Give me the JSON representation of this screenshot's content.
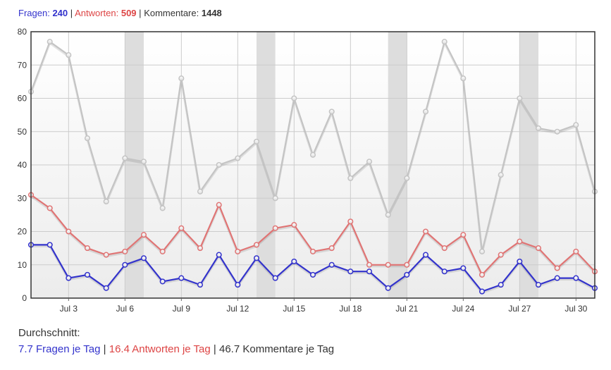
{
  "summary": {
    "questions_label": "Fragen:",
    "questions_value": "240",
    "answers_label": "Antworten:",
    "answers_value": "509",
    "comments_label": "Kommentare:",
    "comments_value": "1448",
    "separator": "|"
  },
  "footer": {
    "heading": "Durchschnitt:",
    "questions_avg": "7.7 Fragen je Tag",
    "answers_avg": "16.4 Antworten je Tag",
    "comments_avg": "46.7 Kommentare je Tag",
    "separator": "|"
  },
  "colors": {
    "questions": "#3333cc",
    "answers": "#e07474",
    "comments": "#c4c4c4",
    "weekend_band": "#dddddd"
  },
  "chart_data": {
    "type": "line",
    "x": [
      1,
      2,
      3,
      4,
      5,
      6,
      7,
      8,
      9,
      10,
      11,
      12,
      13,
      14,
      15,
      16,
      17,
      18,
      19,
      20,
      21,
      22,
      23,
      24,
      25,
      26,
      27,
      28,
      29,
      30,
      31
    ],
    "x_unit": "day of July",
    "xlim": [
      1,
      31
    ],
    "ylim": [
      0,
      80
    ],
    "yticks": [
      0,
      10,
      20,
      30,
      40,
      50,
      60,
      70,
      80
    ],
    "xticks": [
      {
        "x": 3,
        "label": "Jul 3"
      },
      {
        "x": 6,
        "label": "Jul 6"
      },
      {
        "x": 9,
        "label": "Jul 9"
      },
      {
        "x": 12,
        "label": "Jul 12"
      },
      {
        "x": 15,
        "label": "Jul 15"
      },
      {
        "x": 18,
        "label": "Jul 18"
      },
      {
        "x": 21,
        "label": "Jul 21"
      },
      {
        "x": 24,
        "label": "Jul 24"
      },
      {
        "x": 27,
        "label": "Jul 27"
      },
      {
        "x": 30,
        "label": "Jul 30"
      }
    ],
    "weekend_bands": [
      [
        6,
        7
      ],
      [
        13,
        14
      ],
      [
        20,
        21
      ],
      [
        27,
        28
      ]
    ],
    "grid": true,
    "series": [
      {
        "key": "comments",
        "values": [
          62,
          77,
          73,
          48,
          29,
          42,
          41,
          27,
          66,
          32,
          40,
          42,
          47,
          30,
          60,
          43,
          56,
          36,
          41,
          25,
          36,
          56,
          77,
          66,
          14,
          37,
          60,
          51,
          50,
          52,
          32
        ]
      },
      {
        "key": "answers",
        "values": [
          31,
          27,
          20,
          15,
          13,
          14,
          19,
          14,
          21,
          15,
          28,
          14,
          16,
          21,
          22,
          14,
          15,
          23,
          10,
          10,
          10,
          20,
          15,
          19,
          7,
          13,
          17,
          15,
          9,
          14,
          8
        ]
      },
      {
        "key": "questions",
        "values": [
          16,
          16,
          6,
          7,
          3,
          10,
          12,
          5,
          6,
          4,
          13,
          4,
          12,
          6,
          11,
          7,
          10,
          8,
          8,
          3,
          7,
          13,
          8,
          9,
          2,
          4,
          11,
          4,
          6,
          6,
          3
        ]
      }
    ]
  }
}
